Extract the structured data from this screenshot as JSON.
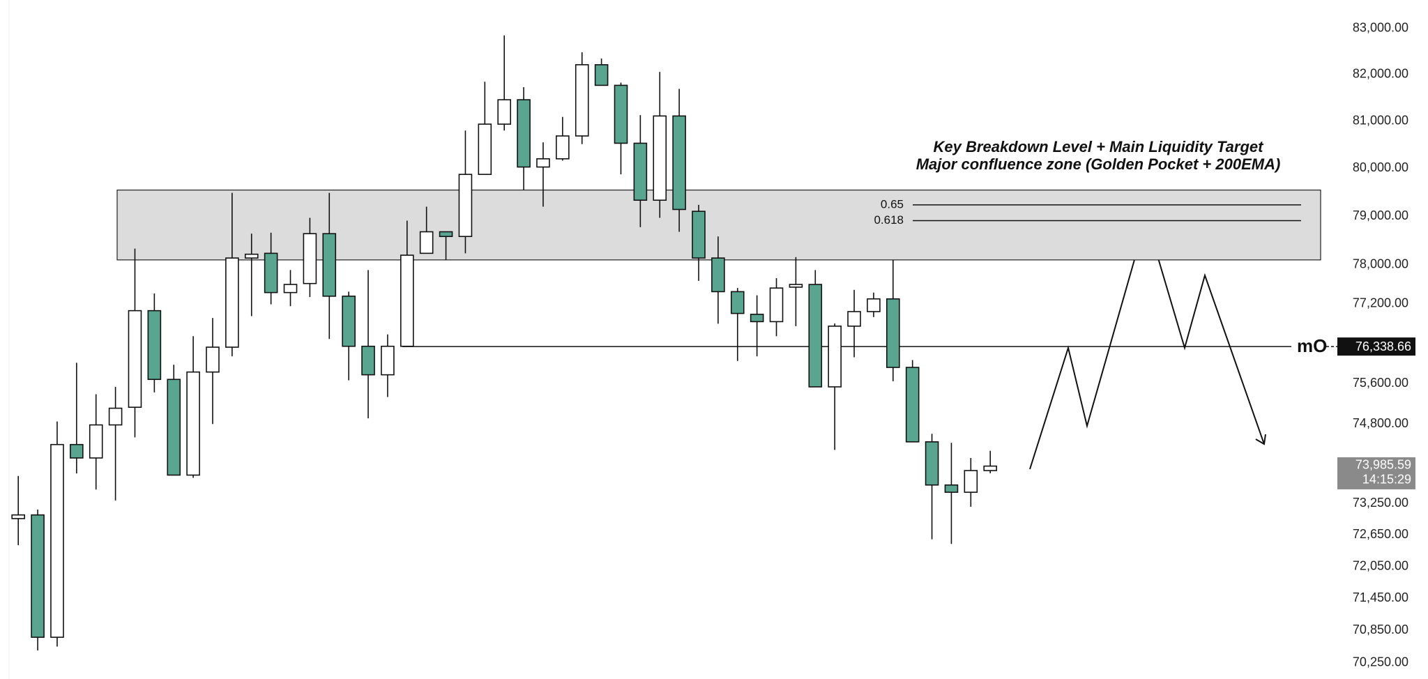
{
  "chart_data": {
    "type": "candlestick",
    "log_scale": true,
    "grid": false,
    "up_color": "#ffffff",
    "down_color": "#5aa58f",
    "ylim": [
      69950,
      83620
    ],
    "yticks": [
      {
        "value": 83000,
        "label": "83,000.00"
      },
      {
        "value": 82000,
        "label": "82,000.00"
      },
      {
        "value": 81000,
        "label": "81,000.00"
      },
      {
        "value": 80000,
        "label": "80,000.00"
      },
      {
        "value": 79000,
        "label": "79,000.00"
      },
      {
        "value": 78000,
        "label": "78,000.00"
      },
      {
        "value": 77200,
        "label": "77,200.00"
      },
      {
        "value": 75600,
        "label": "75,600.00"
      },
      {
        "value": 74800,
        "label": "74,800.00"
      },
      {
        "value": 73250,
        "label": "73,250.00"
      },
      {
        "value": 72650,
        "label": "72,650.00"
      },
      {
        "value": 72050,
        "label": "72,050.00"
      },
      {
        "value": 71450,
        "label": "71,450.00"
      },
      {
        "value": 70850,
        "label": "70,850.00"
      },
      {
        "value": 70250,
        "label": "70,250.00"
      }
    ],
    "open": [
      72963,
      73033,
      70722,
      74397,
      74135,
      74782,
      75130,
      77062,
      75682,
      73802,
      75829,
      76326,
      78136,
      78233,
      77430,
      77614,
      78638,
      77356,
      76344,
      75774,
      76344,
      78233,
      78677,
      78580,
      79873,
      80935,
      81456,
      80028,
      80201,
      80684,
      82209,
      81765,
      80530,
      79333,
      81109,
      79101,
      78136,
      77448,
      76988,
      76840,
      77540,
      77595,
      75534,
      76749,
      77043,
      77301,
      75921,
      74450,
      73610,
      73470,
      73890
    ],
    "high": [
      73785,
      73137,
      74850,
      76013,
      75387,
      75534,
      78329,
      77411,
      75976,
      76546,
      76914,
      79487,
      78638,
      78658,
      77890,
      78966,
      79487,
      77448,
      77890,
      76583,
      78908,
      79198,
      78677,
      80800,
      81842,
      82846,
      81726,
      80549,
      81089,
      82479,
      82344,
      81823,
      81128,
      82054,
      81688,
      79236,
      78580,
      77522,
      77374,
      77724,
      78155,
      77890,
      76804,
      77485,
      77430,
      78097,
      76068,
      74607,
      74432,
      74135,
      74275
    ],
    "low": [
      72454,
      70478,
      70548,
      73835,
      73522,
      73312,
      74537,
      75424,
      73802,
      73750,
      74800,
      76142,
      76952,
      77190,
      77153,
      77338,
      76491,
      75664,
      74911,
      75333,
      76344,
      78233,
      78097,
      78233,
      79873,
      80800,
      79545,
      79198,
      80163,
      80510,
      81765,
      79873,
      78773,
      78966,
      78677,
      77669,
      76798,
      76050,
      76142,
      76546,
      76749,
      75534,
      74292,
      76124,
      76932,
      75645,
      74450,
      72566,
      72479,
      73190,
      73837
    ],
    "close": [
      73033,
      70722,
      74397,
      74135,
      74782,
      75111,
      77062,
      75682,
      73802,
      75829,
      76326,
      78136,
      78214,
      77430,
      77595,
      78638,
      77356,
      76344,
      75774,
      76344,
      78194,
      78677,
      78580,
      79873,
      80935,
      81456,
      80028,
      80201,
      80684,
      82209,
      81765,
      80530,
      79333,
      81109,
      79140,
      78136,
      77448,
      77006,
      76840,
      77522,
      77595,
      75534,
      76749,
      77043,
      77301,
      75921,
      74450,
      73610,
      73470,
      73890,
      73977
    ],
    "zone": {
      "top": 79545,
      "bottom": 78097,
      "title": "Key Breakdown Level + Main Liquidity Target",
      "subtitle": "Major confluence zone (Golden Pocket + 200EMA)"
    },
    "fib_levels": [
      {
        "label": 0.65,
        "price": 79236
      },
      {
        "label": 0.618,
        "price": 78908
      }
    ],
    "mo": {
      "label": "mO",
      "value": 76338.66,
      "value_label": "76,338.66"
    },
    "current": {
      "value": 73985.59,
      "value_label": "73,985.59",
      "countdown": "14:15:29"
    }
  }
}
